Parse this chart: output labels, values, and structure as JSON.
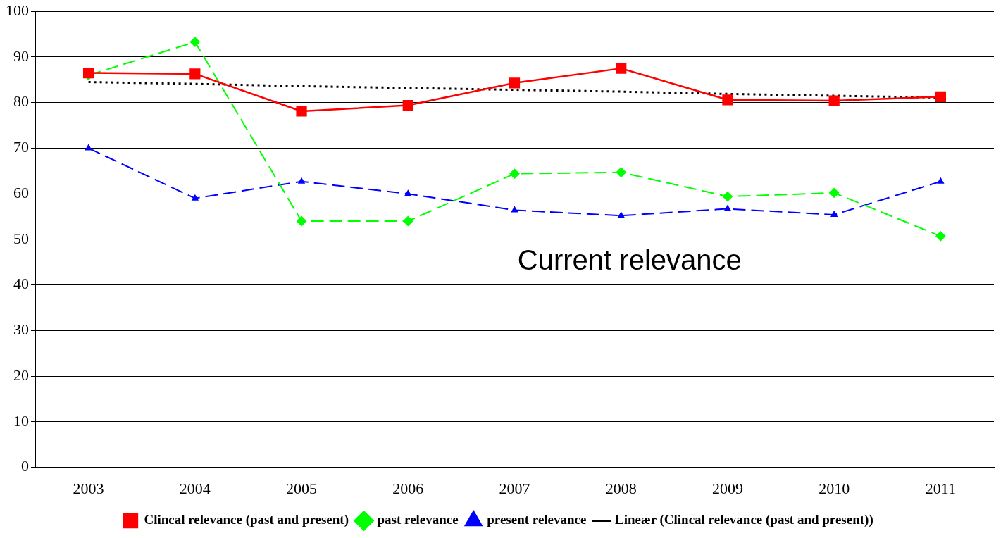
{
  "chart_data": {
    "type": "line",
    "categories": [
      "2003",
      "2004",
      "2005",
      "2006",
      "2007",
      "2008",
      "2009",
      "2010",
      "2011"
    ],
    "series": [
      {
        "name": "Clincal relevance (past and present)",
        "color": "#ff0000",
        "marker": "square",
        "line_style": "solid",
        "values": [
          86.5,
          86.3,
          78.1,
          79.4,
          84.3,
          87.5,
          80.6,
          80.4,
          81.3
        ]
      },
      {
        "name": "past relevance",
        "color": "#00ff00",
        "marker": "diamond",
        "line_style": "dashed",
        "values": [
          86,
          93.3,
          54,
          54,
          64.4,
          64.7,
          59.4,
          60.2,
          50.7
        ]
      },
      {
        "name": "present relevance",
        "color": "#0000ff",
        "marker": "triangle",
        "line_style": "dashed",
        "values": [
          70,
          59,
          62.7,
          60,
          56.4,
          55.2,
          56.7,
          55.4,
          62.7
        ]
      },
      {
        "name": "Lineær (Clincal relevance (past and present))",
        "color": "#000000",
        "marker": "none",
        "line_style": "dotted",
        "values": [
          84.5,
          84.1,
          83.6,
          83.2,
          82.8,
          82.4,
          81.9,
          81.5,
          81.1
        ]
      }
    ],
    "ylim": [
      0,
      100
    ],
    "yticks": [
      0,
      10,
      20,
      30,
      40,
      50,
      60,
      70,
      80,
      90,
      100
    ],
    "grid": "y",
    "legend": "bottom",
    "annotations": [
      "Current relevance"
    ]
  }
}
